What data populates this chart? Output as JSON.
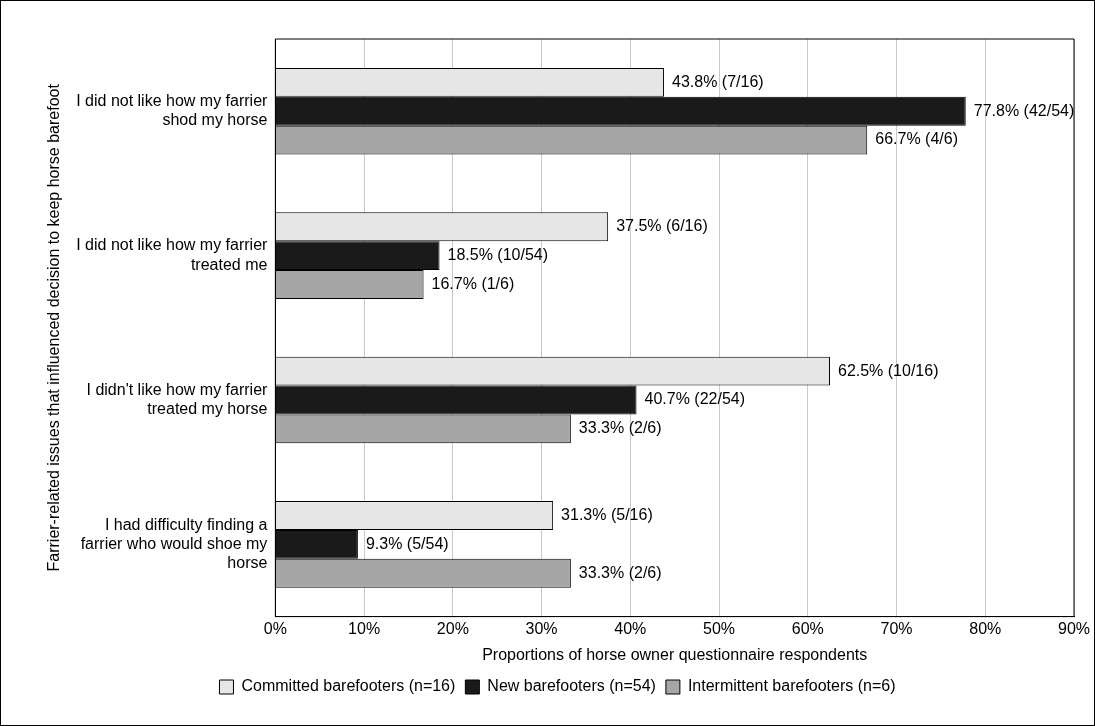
{
  "chart_data": {
    "type": "bar",
    "orientation": "horizontal",
    "xlabel": "Proportions of horse owner questionnaire respondents",
    "ylabel": "Farrier-related issues that influenced decision to keep horse barefoot",
    "categories": [
      "I did not like how my farrier shod my horse",
      "I did not like how my farrier treated me",
      "I didn't like how my farrier treated my horse",
      "I had difficulty finding a farrier who would shoe my horse"
    ],
    "series": [
      {
        "name": "Committed barefooters (n=16)",
        "color": "#e6e6e6",
        "values": [
          43.8,
          37.5,
          62.5,
          31.3
        ],
        "value_labels": [
          "43.8% (7/16)",
          "37.5% (6/16)",
          "62.5% (10/16)",
          "31.3% (5/16)"
        ]
      },
      {
        "name": "New barefooters (n=54)",
        "color": "#1a1a1a",
        "values": [
          77.8,
          18.5,
          40.7,
          9.3
        ],
        "value_labels": [
          "77.8% (42/54)",
          "18.5% (10/54)",
          "40.7% (22/54)",
          "9.3% (5/54)"
        ]
      },
      {
        "name": "Intermittent barefooters (n=6)",
        "color": "#a6a6a6",
        "values": [
          66.7,
          16.7,
          33.3,
          33.3
        ],
        "value_labels": [
          "66.7% (4/6)",
          "16.7% (1/6)",
          "33.3% (2/6)",
          "33.3% (2/6)"
        ]
      }
    ],
    "xlim": [
      0,
      90
    ],
    "xticks": [
      {
        "value": 0,
        "label": "0%"
      },
      {
        "value": 10,
        "label": "10%"
      },
      {
        "value": 20,
        "label": "20%"
      },
      {
        "value": 30,
        "label": "30%"
      },
      {
        "value": 40,
        "label": "40%"
      },
      {
        "value": 50,
        "label": "50%"
      },
      {
        "value": 60,
        "label": "60%"
      },
      {
        "value": 70,
        "label": "70%"
      },
      {
        "value": 80,
        "label": "80%"
      },
      {
        "value": 90,
        "label": "90%"
      }
    ],
    "grid": "x",
    "legend": "bottom"
  }
}
